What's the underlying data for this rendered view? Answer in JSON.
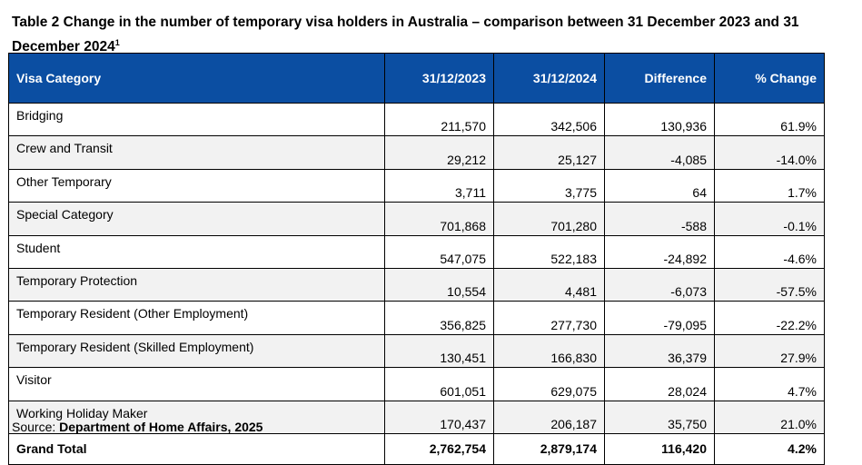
{
  "title": "Table 2 Change in the number of temporary visa holders in Australia – comparison between 31 December 2023 and 31 December 2024",
  "title_footnote": "1",
  "headers": [
    "Visa Category",
    "31/12/2023",
    "31/12/2024",
    "Difference",
    "% Change"
  ],
  "rows": [
    [
      "Bridging",
      "211,570",
      "342,506",
      "130,936",
      "61.9%"
    ],
    [
      "Crew and Transit",
      "29,212",
      "25,127",
      "-4,085",
      "-14.0%"
    ],
    [
      "Other Temporary",
      "3,711",
      "3,775",
      "64",
      "1.7%"
    ],
    [
      "Special Category",
      "701,868",
      "701,280",
      "-588",
      "-0.1%"
    ],
    [
      "Student",
      "547,075",
      "522,183",
      "-24,892",
      "-4.6%"
    ],
    [
      "Temporary Protection",
      "10,554",
      "4,481",
      "-6,073",
      "-57.5%"
    ],
    [
      "Temporary Resident (Other Employment)",
      "356,825",
      "277,730",
      "-79,095",
      "-22.2%"
    ],
    [
      "Temporary Resident (Skilled Employment)",
      "130,451",
      "166,830",
      "36,379",
      "27.9%"
    ],
    [
      "Visitor",
      "601,051",
      "629,075",
      "28,024",
      "4.7%"
    ],
    [
      "Working Holiday Maker",
      "170,437",
      "206,187",
      "35,750",
      "21.0%"
    ]
  ],
  "total": [
    "Grand Total",
    "2,762,754",
    "2,879,174",
    "116,420",
    "4.2%"
  ],
  "source": {
    "label": "Source: ",
    "value": "Department of Home Affairs, 2025"
  },
  "colors": {
    "header_bg": "#0b4ea2",
    "alt_row_bg": "#f2f2f2"
  }
}
